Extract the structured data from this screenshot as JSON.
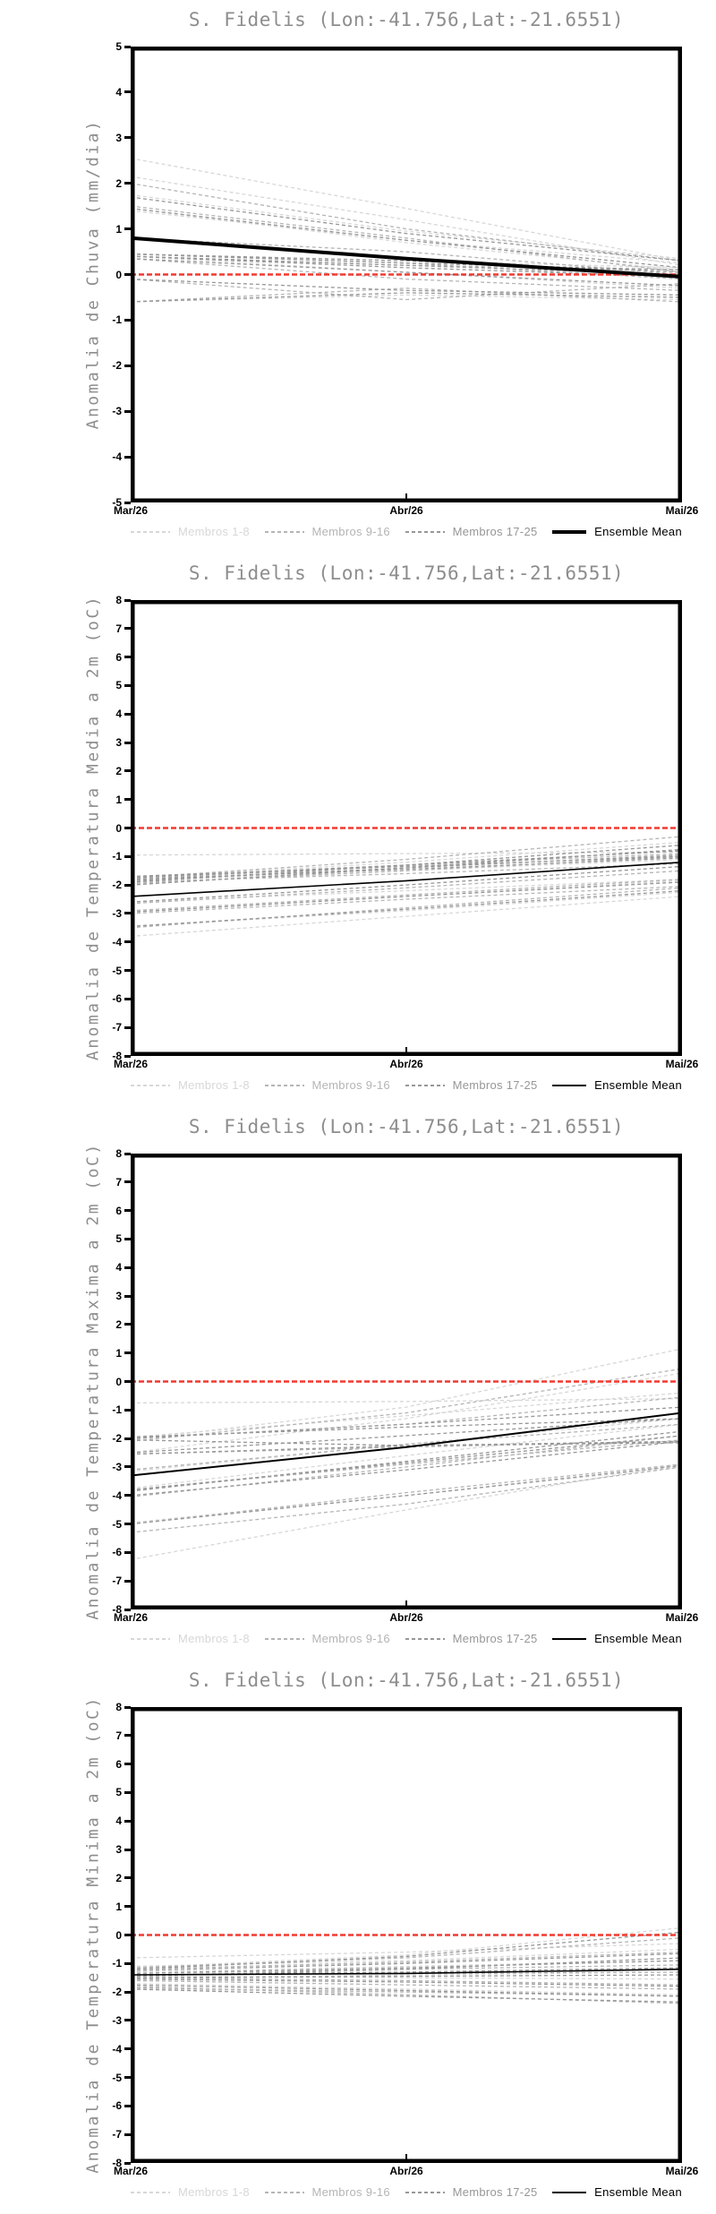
{
  "page": {
    "background": "#ffffff"
  },
  "shared": {
    "title": "S. Fidelis (Lon:-41.756,Lat:-21.6551)",
    "x_labels": [
      "Mar/26",
      "Abr/26",
      "Mai/26"
    ],
    "zero_line_color": "#f03a30",
    "frame_color": "#000000",
    "title_color": "#8d8d8d"
  },
  "chart_data": [
    {
      "type": "line",
      "title": "S. Fidelis (Lon:-41.756,Lat:-21.6551)",
      "ylabel": "Anomalia de Chuva (mm/dia)",
      "x_labels": [
        "Mar/26",
        "Abr/26",
        "Mai/26"
      ],
      "ylim": [
        -5,
        5
      ],
      "ytick_step": 1,
      "grid": false,
      "legend_position": "bottom",
      "zero_line": {
        "value": 0,
        "color": "#f03a30",
        "style": "dashed"
      },
      "series": [
        {
          "name": "Membros 1-8",
          "color": "#d7d7d7",
          "style": "dashed",
          "width": 1.3,
          "mean": false,
          "lines": [
            [
              2.55,
              1.45,
              0.3
            ],
            [
              2.15,
              1.2,
              0.2
            ],
            [
              1.75,
              0.95,
              0.35
            ],
            [
              1.45,
              0.7,
              0.1
            ],
            [
              0.45,
              0.3,
              0.15
            ],
            [
              -0.6,
              -0.45,
              -0.55
            ],
            [
              0.4,
              0.05,
              -0.3
            ],
            [
              1.4,
              0.75,
              0.25
            ]
          ]
        },
        {
          "name": "Membros 9-16",
          "color": "#b5b5b5",
          "style": "dashed",
          "width": 1.3,
          "mean": false,
          "lines": [
            [
              1.5,
              0.8,
              0.05
            ],
            [
              0.45,
              0.25,
              -0.1
            ],
            [
              0.35,
              -0.1,
              -0.35
            ],
            [
              -0.6,
              -0.3,
              -0.6
            ],
            [
              0.4,
              0.2,
              0.1
            ],
            [
              -0.1,
              -0.55,
              -0.2
            ],
            [
              0.8,
              0.5,
              0.0
            ],
            [
              2.0,
              1.0,
              0.3
            ]
          ]
        },
        {
          "name": "Membros 17-25",
          "color": "#979797",
          "style": "dashed",
          "width": 1.3,
          "mean": false,
          "lines": [
            [
              0.45,
              0.3,
              0.05
            ],
            [
              0.4,
              0.15,
              -0.05
            ],
            [
              1.45,
              0.75,
              0.15
            ],
            [
              0.35,
              0.05,
              -0.25
            ],
            [
              -0.1,
              -0.35,
              -0.45
            ],
            [
              0.4,
              0.2,
              0.0
            ],
            [
              1.7,
              0.9,
              0.3
            ],
            [
              0.45,
              0.25,
              0.1
            ],
            [
              -0.6,
              -0.4,
              -0.5
            ]
          ]
        },
        {
          "name": "Ensemble Mean",
          "color": "#000000",
          "style": "solid",
          "width": 4,
          "mean": true,
          "lines": [
            [
              0.8,
              0.35,
              -0.05
            ]
          ]
        }
      ]
    },
    {
      "type": "line",
      "title": "S. Fidelis (Lon:-41.756,Lat:-21.6551)",
      "ylabel": "Anomalia de Temperatura Media a 2m (oC)",
      "x_labels": [
        "Mar/26",
        "Abr/26",
        "Mai/26"
      ],
      "ylim": [
        -8,
        8
      ],
      "ytick_step": 1,
      "grid": false,
      "legend_position": "bottom",
      "zero_line": {
        "value": 0,
        "color": "#f03a30",
        "style": "dashed"
      },
      "series": [
        {
          "name": "Membros 1-8",
          "color": "#d7d7d7",
          "style": "dashed",
          "width": 1.3,
          "mean": false,
          "lines": [
            [
              -0.95,
              -0.9,
              -0.85
            ],
            [
              -1.7,
              -1.3,
              -0.8
            ],
            [
              -2.6,
              -2.2,
              -1.8
            ],
            [
              -3.45,
              -2.9,
              -2.25
            ],
            [
              -1.85,
              -1.5,
              -1.1
            ],
            [
              -2.95,
              -2.4,
              -1.85
            ],
            [
              -3.8,
              -3.1,
              -2.4
            ],
            [
              -1.75,
              -1.2,
              -0.5
            ]
          ]
        },
        {
          "name": "Membros 9-16",
          "color": "#b5b5b5",
          "style": "dashed",
          "width": 1.3,
          "mean": false,
          "lines": [
            [
              -1.8,
              -1.3,
              -0.9
            ],
            [
              -2.65,
              -2.1,
              -1.5
            ],
            [
              -1.9,
              -1.6,
              -1.25
            ],
            [
              -3.0,
              -2.5,
              -2.05
            ],
            [
              -1.75,
              -1.1,
              -0.3
            ],
            [
              -2.9,
              -2.35,
              -1.8
            ],
            [
              -1.95,
              -1.5,
              -1.0
            ],
            [
              -3.5,
              -2.8,
              -2.1
            ]
          ]
        },
        {
          "name": "Membros 17-25",
          "color": "#979797",
          "style": "dashed",
          "width": 1.3,
          "mean": false,
          "lines": [
            [
              -1.7,
              -1.35,
              -1.0
            ],
            [
              -1.8,
              -1.45,
              -1.05
            ],
            [
              -2.6,
              -2.0,
              -1.35
            ],
            [
              -1.9,
              -1.3,
              -0.6
            ],
            [
              -2.0,
              -1.4,
              -0.75
            ],
            [
              -2.95,
              -2.4,
              -1.9
            ],
            [
              -1.75,
              -1.3,
              -0.8
            ],
            [
              -3.45,
              -2.85,
              -2.2
            ],
            [
              -1.85,
              -1.4,
              -0.95
            ]
          ]
        },
        {
          "name": "Ensemble Mean",
          "color": "#000000",
          "style": "solid",
          "width": 1.6,
          "mean": true,
          "lines": [
            [
              -2.4,
              -1.85,
              -1.2
            ]
          ]
        }
      ]
    },
    {
      "type": "line",
      "title": "S. Fidelis (Lon:-41.756,Lat:-21.6551)",
      "ylabel": "Anomalia de Temperatura Maxima a 2m (oC)",
      "x_labels": [
        "Mar/26",
        "Abr/26",
        "Mai/26"
      ],
      "ylim": [
        -8,
        8
      ],
      "ytick_step": 1,
      "grid": false,
      "legend_position": "bottom",
      "zero_line": {
        "value": 0,
        "color": "#f03a30",
        "style": "dashed"
      },
      "series": [
        {
          "name": "Membros 1-8",
          "color": "#d7d7d7",
          "style": "dashed",
          "width": 1.3,
          "mean": false,
          "lines": [
            [
              -0.75,
              -0.7,
              -0.6
            ],
            [
              -1.95,
              -1.2,
              -0.4
            ],
            [
              -3.15,
              -2.2,
              -1.3
            ],
            [
              -4.95,
              -4.0,
              -3.0
            ],
            [
              -6.25,
              -4.5,
              -2.9
            ],
            [
              -2.5,
              -1.3,
              0.3
            ],
            [
              -3.75,
              -2.6,
              -1.5
            ],
            [
              -2.05,
              -0.9,
              1.15
            ]
          ]
        },
        {
          "name": "Membros 9-16",
          "color": "#b5b5b5",
          "style": "dashed",
          "width": 1.3,
          "mean": false,
          "lines": [
            [
              -2.0,
              -1.5,
              -0.55
            ],
            [
              -3.8,
              -2.9,
              -2.05
            ],
            [
              -2.55,
              -2.3,
              -2.1
            ],
            [
              -5.0,
              -3.9,
              -2.9
            ],
            [
              -2.1,
              -1.1,
              0.45
            ],
            [
              -4.05,
              -3.0,
              -1.9
            ],
            [
              -3.1,
              -2.2,
              -1.5
            ],
            [
              -5.3,
              -4.3,
              -3.0
            ]
          ]
        },
        {
          "name": "Membros 17-25",
          "color": "#979797",
          "style": "dashed",
          "width": 1.3,
          "mean": false,
          "lines": [
            [
              -1.95,
              -1.6,
              -1.3
            ],
            [
              -2.05,
              -2.25,
              -2.15
            ],
            [
              -3.85,
              -2.8,
              -1.75
            ],
            [
              -2.5,
              -1.9,
              -1.3
            ],
            [
              -4.0,
              -3.1,
              -2.1
            ],
            [
              -2.0,
              -1.5,
              -0.9
            ],
            [
              -5.0,
              -4.0,
              -2.95
            ],
            [
              -2.55,
              -2.25,
              -2.1
            ],
            [
              -3.8,
              -2.85,
              -1.9
            ]
          ]
        },
        {
          "name": "Ensemble Mean",
          "color": "#000000",
          "style": "solid",
          "width": 2,
          "mean": true,
          "lines": [
            [
              -3.3,
              -2.3,
              -1.1
            ]
          ]
        }
      ]
    },
    {
      "type": "line",
      "title": "S. Fidelis (Lon:-41.756,Lat:-21.6551)",
      "ylabel": "Anomalia de Temperatura Minima a 2m (oC)",
      "x_labels": [
        "Mar/26",
        "Abr/26",
        "Mai/26"
      ],
      "ylim": [
        -8,
        8
      ],
      "ytick_step": 1,
      "grid": false,
      "legend_position": "bottom",
      "zero_line": {
        "value": 0,
        "color": "#f03a30",
        "style": "dashed"
      },
      "series": [
        {
          "name": "Membros 1-8",
          "color": "#d7d7d7",
          "style": "dashed",
          "width": 1.3,
          "mean": false,
          "lines": [
            [
              -0.8,
              -0.6,
              -0.3
            ],
            [
              -1.3,
              -1.1,
              -0.9
            ],
            [
              -1.55,
              -1.4,
              -1.3
            ],
            [
              -1.9,
              -2.0,
              -2.1
            ],
            [
              -1.1,
              -0.9,
              -0.5
            ],
            [
              -1.45,
              -1.5,
              -1.55
            ],
            [
              -1.7,
              -1.9,
              -2.1
            ],
            [
              -1.15,
              -0.7,
              0.25
            ]
          ]
        },
        {
          "name": "Membros 9-16",
          "color": "#b5b5b5",
          "style": "dashed",
          "width": 1.3,
          "mean": false,
          "lines": [
            [
              -1.35,
              -1.2,
              -1.05
            ],
            [
              -1.5,
              -1.6,
              -1.75
            ],
            [
              -1.15,
              -0.8,
              -0.1
            ],
            [
              -1.8,
              -2.1,
              -2.4
            ],
            [
              -1.4,
              -1.35,
              -1.3
            ],
            [
              -1.6,
              -1.75,
              -1.9
            ],
            [
              -1.2,
              -0.95,
              -0.6
            ],
            [
              -1.85,
              -2.0,
              -2.15
            ]
          ]
        },
        {
          "name": "Membros 17-25",
          "color": "#979797",
          "style": "dashed",
          "width": 1.3,
          "mean": false,
          "lines": [
            [
              -1.4,
              -1.3,
              -1.15
            ],
            [
              -1.5,
              -1.45,
              -1.4
            ],
            [
              -1.25,
              -1.0,
              -0.65
            ],
            [
              -1.75,
              -1.95,
              -2.15
            ],
            [
              -1.35,
              -1.15,
              -0.9
            ],
            [
              -1.55,
              -1.65,
              -1.8
            ],
            [
              -1.45,
              -1.2,
              -0.8
            ],
            [
              -1.9,
              -2.15,
              -2.35
            ],
            [
              -1.2,
              -0.75,
              0.1
            ]
          ]
        },
        {
          "name": "Ensemble Mean",
          "color": "#000000",
          "style": "solid",
          "width": 1.6,
          "mean": true,
          "lines": [
            [
              -1.4,
              -1.35,
              -1.2
            ]
          ]
        }
      ]
    }
  ]
}
